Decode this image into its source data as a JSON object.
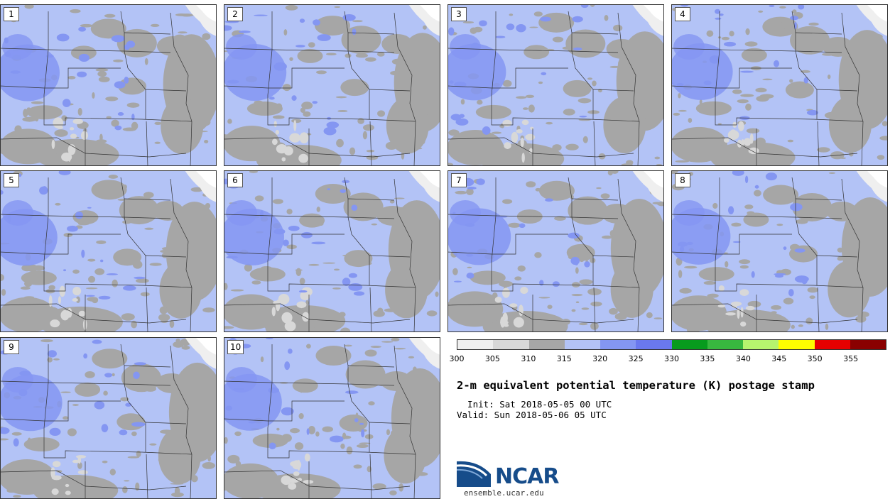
{
  "panels": [
    {
      "label": "1"
    },
    {
      "label": "2"
    },
    {
      "label": "3"
    },
    {
      "label": "4"
    },
    {
      "label": "5"
    },
    {
      "label": "6"
    },
    {
      "label": "7"
    },
    {
      "label": "8"
    },
    {
      "label": "9"
    },
    {
      "label": "10"
    }
  ],
  "colorbar": {
    "colors": [
      "#efefef",
      "#d8d8d8",
      "#a6a6a6",
      "#b3c3f6",
      "#8496f2",
      "#6a78ee",
      "#079b1d",
      "#38b83f",
      "#b6f46e",
      "#fefe00",
      "#e60000",
      "#8a0000"
    ],
    "ticks": [
      "300",
      "305",
      "310",
      "315",
      "320",
      "325",
      "330",
      "335",
      "340",
      "345",
      "350",
      "355"
    ]
  },
  "title": "2-m equivalent potential temperature (K) postage stamp",
  "init": "  Init: Sat 2018-05-05 00 UTC",
  "valid": "Valid: Sun 2018-05-06 05 UTC",
  "logo": {
    "name": "NCAR",
    "url": "ensemble.ucar.edu"
  }
}
